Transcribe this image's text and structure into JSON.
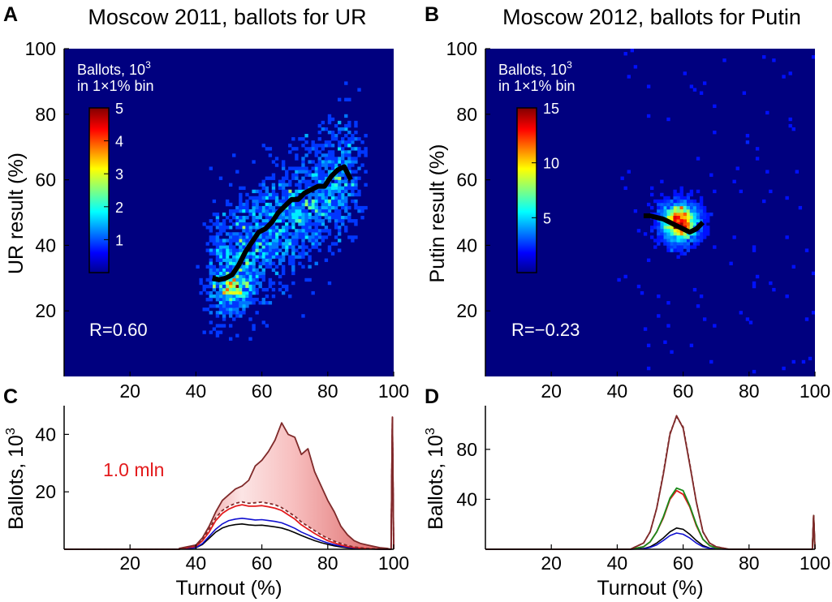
{
  "colors": {
    "background": "#00007f",
    "regression_line": "#000000",
    "axis": "#000000",
    "annotation_text": "#ffffff",
    "fraud_label": "#e31a1c",
    "total_dark": "#7f2a2a",
    "fill_light": "#f4a9a9",
    "red_series": "#e31a1c",
    "blue_series": "#1010d0",
    "green_series": "#1a8a1a",
    "black_series": "#000000"
  },
  "chart_data": [
    {
      "id": "A",
      "type": "heatmap",
      "panel_label": "A",
      "title": "Moscow 2011, ballots for UR",
      "xlabel": "",
      "ylabel": "UR result (%)",
      "xlim": [
        0,
        100
      ],
      "ylim": [
        0,
        100
      ],
      "xticks": [
        "20",
        "40",
        "60",
        "80",
        "100"
      ],
      "yticks": [
        "20",
        "40",
        "60",
        "80",
        "100"
      ],
      "colorbar": {
        "title_line1": "Ballots, 10",
        "title_sup": "3",
        "title_line2": "in 1×1% bin",
        "ticks": [
          "1",
          "2",
          "3",
          "4",
          "5"
        ],
        "max": 5
      },
      "annotation": "R=0.60",
      "cluster": {
        "x_center": 60,
        "y_center": 48,
        "x_min": 43,
        "x_max": 90
      },
      "regression_line": {
        "x": [
          45,
          47,
          49,
          51,
          53,
          55,
          57,
          59,
          61,
          63,
          65,
          67,
          69,
          71,
          73,
          75,
          77,
          79,
          81,
          83,
          85,
          87
        ],
        "y": [
          30,
          29.5,
          30,
          31,
          34,
          38,
          41,
          44,
          45,
          47,
          50,
          52,
          54,
          54,
          56,
          57,
          58,
          58,
          61,
          63,
          64,
          60
        ]
      }
    },
    {
      "id": "B",
      "type": "heatmap",
      "panel_label": "B",
      "title": "Moscow 2012, ballots for Putin",
      "xlabel": "",
      "ylabel": "Putin result (%)",
      "xlim": [
        0,
        100
      ],
      "ylim": [
        0,
        100
      ],
      "xticks": [
        "20",
        "40",
        "60",
        "80",
        "100"
      ],
      "yticks": [
        "20",
        "40",
        "60",
        "80",
        "100"
      ],
      "colorbar": {
        "title_line1": "Ballots, 10",
        "title_sup": "3",
        "title_line2": "in 1×1% bin",
        "ticks": [
          "5",
          "10",
          "15"
        ],
        "max": 15
      },
      "annotation": "R=−0.23",
      "cluster": {
        "x_center": 59,
        "y_center": 47,
        "x_min": 50,
        "x_max": 68
      },
      "regression_line": {
        "x": [
          48,
          50,
          52,
          54,
          56,
          58,
          60,
          62,
          64,
          66
        ],
        "y": [
          49,
          49,
          48.5,
          48,
          47,
          46,
          45,
          44,
          45,
          47
        ]
      }
    },
    {
      "id": "C",
      "type": "area",
      "panel_label": "C",
      "title": "",
      "xlabel": "Turnout (%)",
      "ylabel_line": "Ballots, 10",
      "ylabel_sup": "3",
      "xlim": [
        0,
        100
      ],
      "ylim": [
        0,
        50
      ],
      "xticks": [
        "20",
        "40",
        "60",
        "80",
        "100"
      ],
      "yticks": [
        "20",
        "40"
      ],
      "annotation": "1.0 mln",
      "x": [
        35,
        40,
        42,
        44,
        46,
        48,
        50,
        52,
        54,
        56,
        58,
        60,
        62,
        64,
        66,
        68,
        70,
        72,
        74,
        76,
        78,
        80,
        82,
        84,
        86,
        88,
        90,
        92,
        94,
        96,
        98
      ],
      "series": [
        {
          "name": "total",
          "values": [
            0.3,
            1.5,
            4,
            8,
            13,
            17,
            19,
            21,
            22,
            24,
            29,
            31,
            34,
            38,
            44,
            40,
            39,
            33,
            35,
            27,
            22,
            17,
            13,
            8,
            5,
            3,
            2,
            1.5,
            1,
            0.5,
            0.3
          ]
        },
        {
          "name": "expected",
          "values": [
            0.3,
            1.2,
            3.5,
            7,
            11,
            13.5,
            15,
            16,
            16.5,
            16,
            16.2,
            16.4,
            16,
            15.5,
            14.5,
            13,
            11.5,
            9.5,
            8,
            6.5,
            5,
            3.8,
            2.8,
            2,
            1.3,
            0.8,
            0.5,
            0.3,
            0.2,
            0.1,
            0.05
          ]
        },
        {
          "name": "red",
          "values": [
            0.2,
            1,
            3,
            6,
            10,
            12.5,
            14,
            15,
            15.5,
            15,
            15,
            15.2,
            14.8,
            14.3,
            13.5,
            12,
            10.5,
            8.5,
            7,
            5.5,
            4.2,
            3,
            2.2,
            1.5,
            1,
            0.6,
            0.4,
            0.2,
            0.1,
            0.05,
            0.02
          ]
        },
        {
          "name": "blue",
          "values": [
            0.1,
            0.6,
            2,
            4.5,
            7,
            8.8,
            10,
            10.5,
            10.8,
            10.5,
            10.2,
            10.3,
            10,
            9.7,
            9.2,
            8.3,
            7.3,
            6,
            5,
            3.9,
            3,
            2.2,
            1.6,
            1.1,
            0.7,
            0.4,
            0.25,
            0.15,
            0.08,
            0.04,
            0.02
          ]
        },
        {
          "name": "black",
          "values": [
            0.1,
            0.5,
            1.7,
            3.8,
            6,
            7.4,
            8.2,
            8.6,
            8.8,
            8.5,
            8.3,
            8.4,
            8.1,
            7.8,
            7.4,
            6.7,
            5.8,
            4.8,
            3.9,
            3,
            2.3,
            1.7,
            1.2,
            0.8,
            0.5,
            0.3,
            0.2,
            0.1,
            0.05,
            0.03,
            0.01
          ]
        }
      ],
      "end_spike": 46
    },
    {
      "id": "D",
      "type": "line",
      "panel_label": "D",
      "title": "",
      "xlabel": "Turnout (%)",
      "ylabel_line": "Ballots, 10",
      "ylabel_sup": "3",
      "xlim": [
        0,
        100
      ],
      "ylim": [
        0,
        115
      ],
      "xticks": [
        "20",
        "40",
        "60",
        "80",
        "100"
      ],
      "yticks": [
        "40",
        "80"
      ],
      "x": [
        44,
        48,
        50,
        52,
        54,
        56,
        58,
        60,
        62,
        64,
        66,
        68,
        70,
        74
      ],
      "series": [
        {
          "name": "total",
          "values": [
            0,
            5,
            14,
            33,
            60,
            92,
            107,
            97,
            68,
            38,
            14,
            5,
            2,
            0
          ]
        },
        {
          "name": "expected",
          "values": [
            0,
            5,
            14,
            33,
            61,
            93,
            106,
            98,
            69,
            38,
            14,
            5,
            2,
            0
          ]
        },
        {
          "name": "green",
          "values": [
            0,
            2,
            6,
            14,
            26,
            41,
            49,
            47,
            35,
            20,
            8,
            3,
            1,
            0
          ]
        },
        {
          "name": "red",
          "values": [
            0,
            2,
            6,
            14,
            25,
            40,
            47,
            44,
            34,
            19,
            8,
            3,
            1,
            0
          ]
        },
        {
          "name": "black",
          "values": [
            0,
            0.6,
            2,
            5,
            9,
            14,
            17,
            16,
            12,
            7,
            3,
            1,
            0.3,
            0
          ]
        },
        {
          "name": "blue",
          "values": [
            0,
            0.4,
            1.5,
            3.5,
            7,
            11,
            13,
            12,
            9,
            5,
            2,
            0.8,
            0.2,
            0
          ]
        }
      ],
      "end_spike": 27
    }
  ]
}
